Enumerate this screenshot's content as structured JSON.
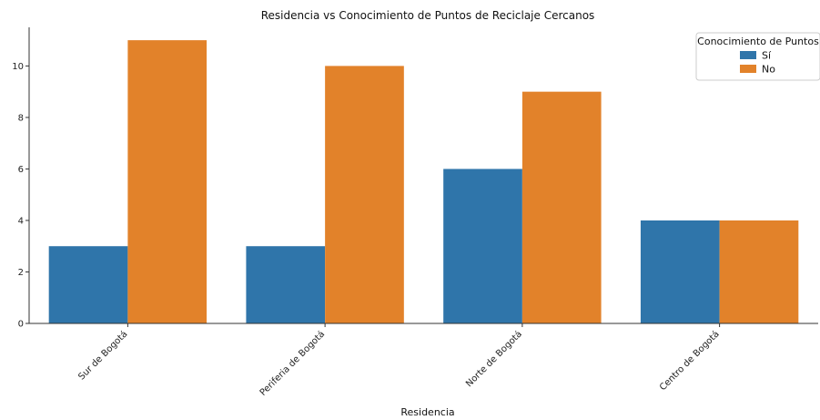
{
  "chart_data": {
    "type": "bar",
    "title": "Residencia vs Conocimiento de Puntos de Reciclaje Cercanos",
    "xlabel": "Residencia",
    "ylabel": "",
    "categories": [
      "Sur de Bogotá",
      "Periferia de Bogotá",
      "Norte de Bogotá",
      "Centro de Bogotá"
    ],
    "series": [
      {
        "name": "Sí",
        "values": [
          3,
          3,
          6,
          4
        ],
        "color": "#2f75aa"
      },
      {
        "name": "No",
        "values": [
          11,
          10,
          9,
          4
        ],
        "color": "#e2822a"
      }
    ],
    "ylim": [
      0,
      11.5
    ],
    "yticks": [
      0,
      2,
      4,
      6,
      8,
      10
    ],
    "ytick_labels": [
      "0",
      "2",
      "4",
      "6",
      "8",
      "10"
    ],
    "grid": false,
    "legend": {
      "title": "Conocimiento de Puntos",
      "placement": "top-right"
    }
  }
}
